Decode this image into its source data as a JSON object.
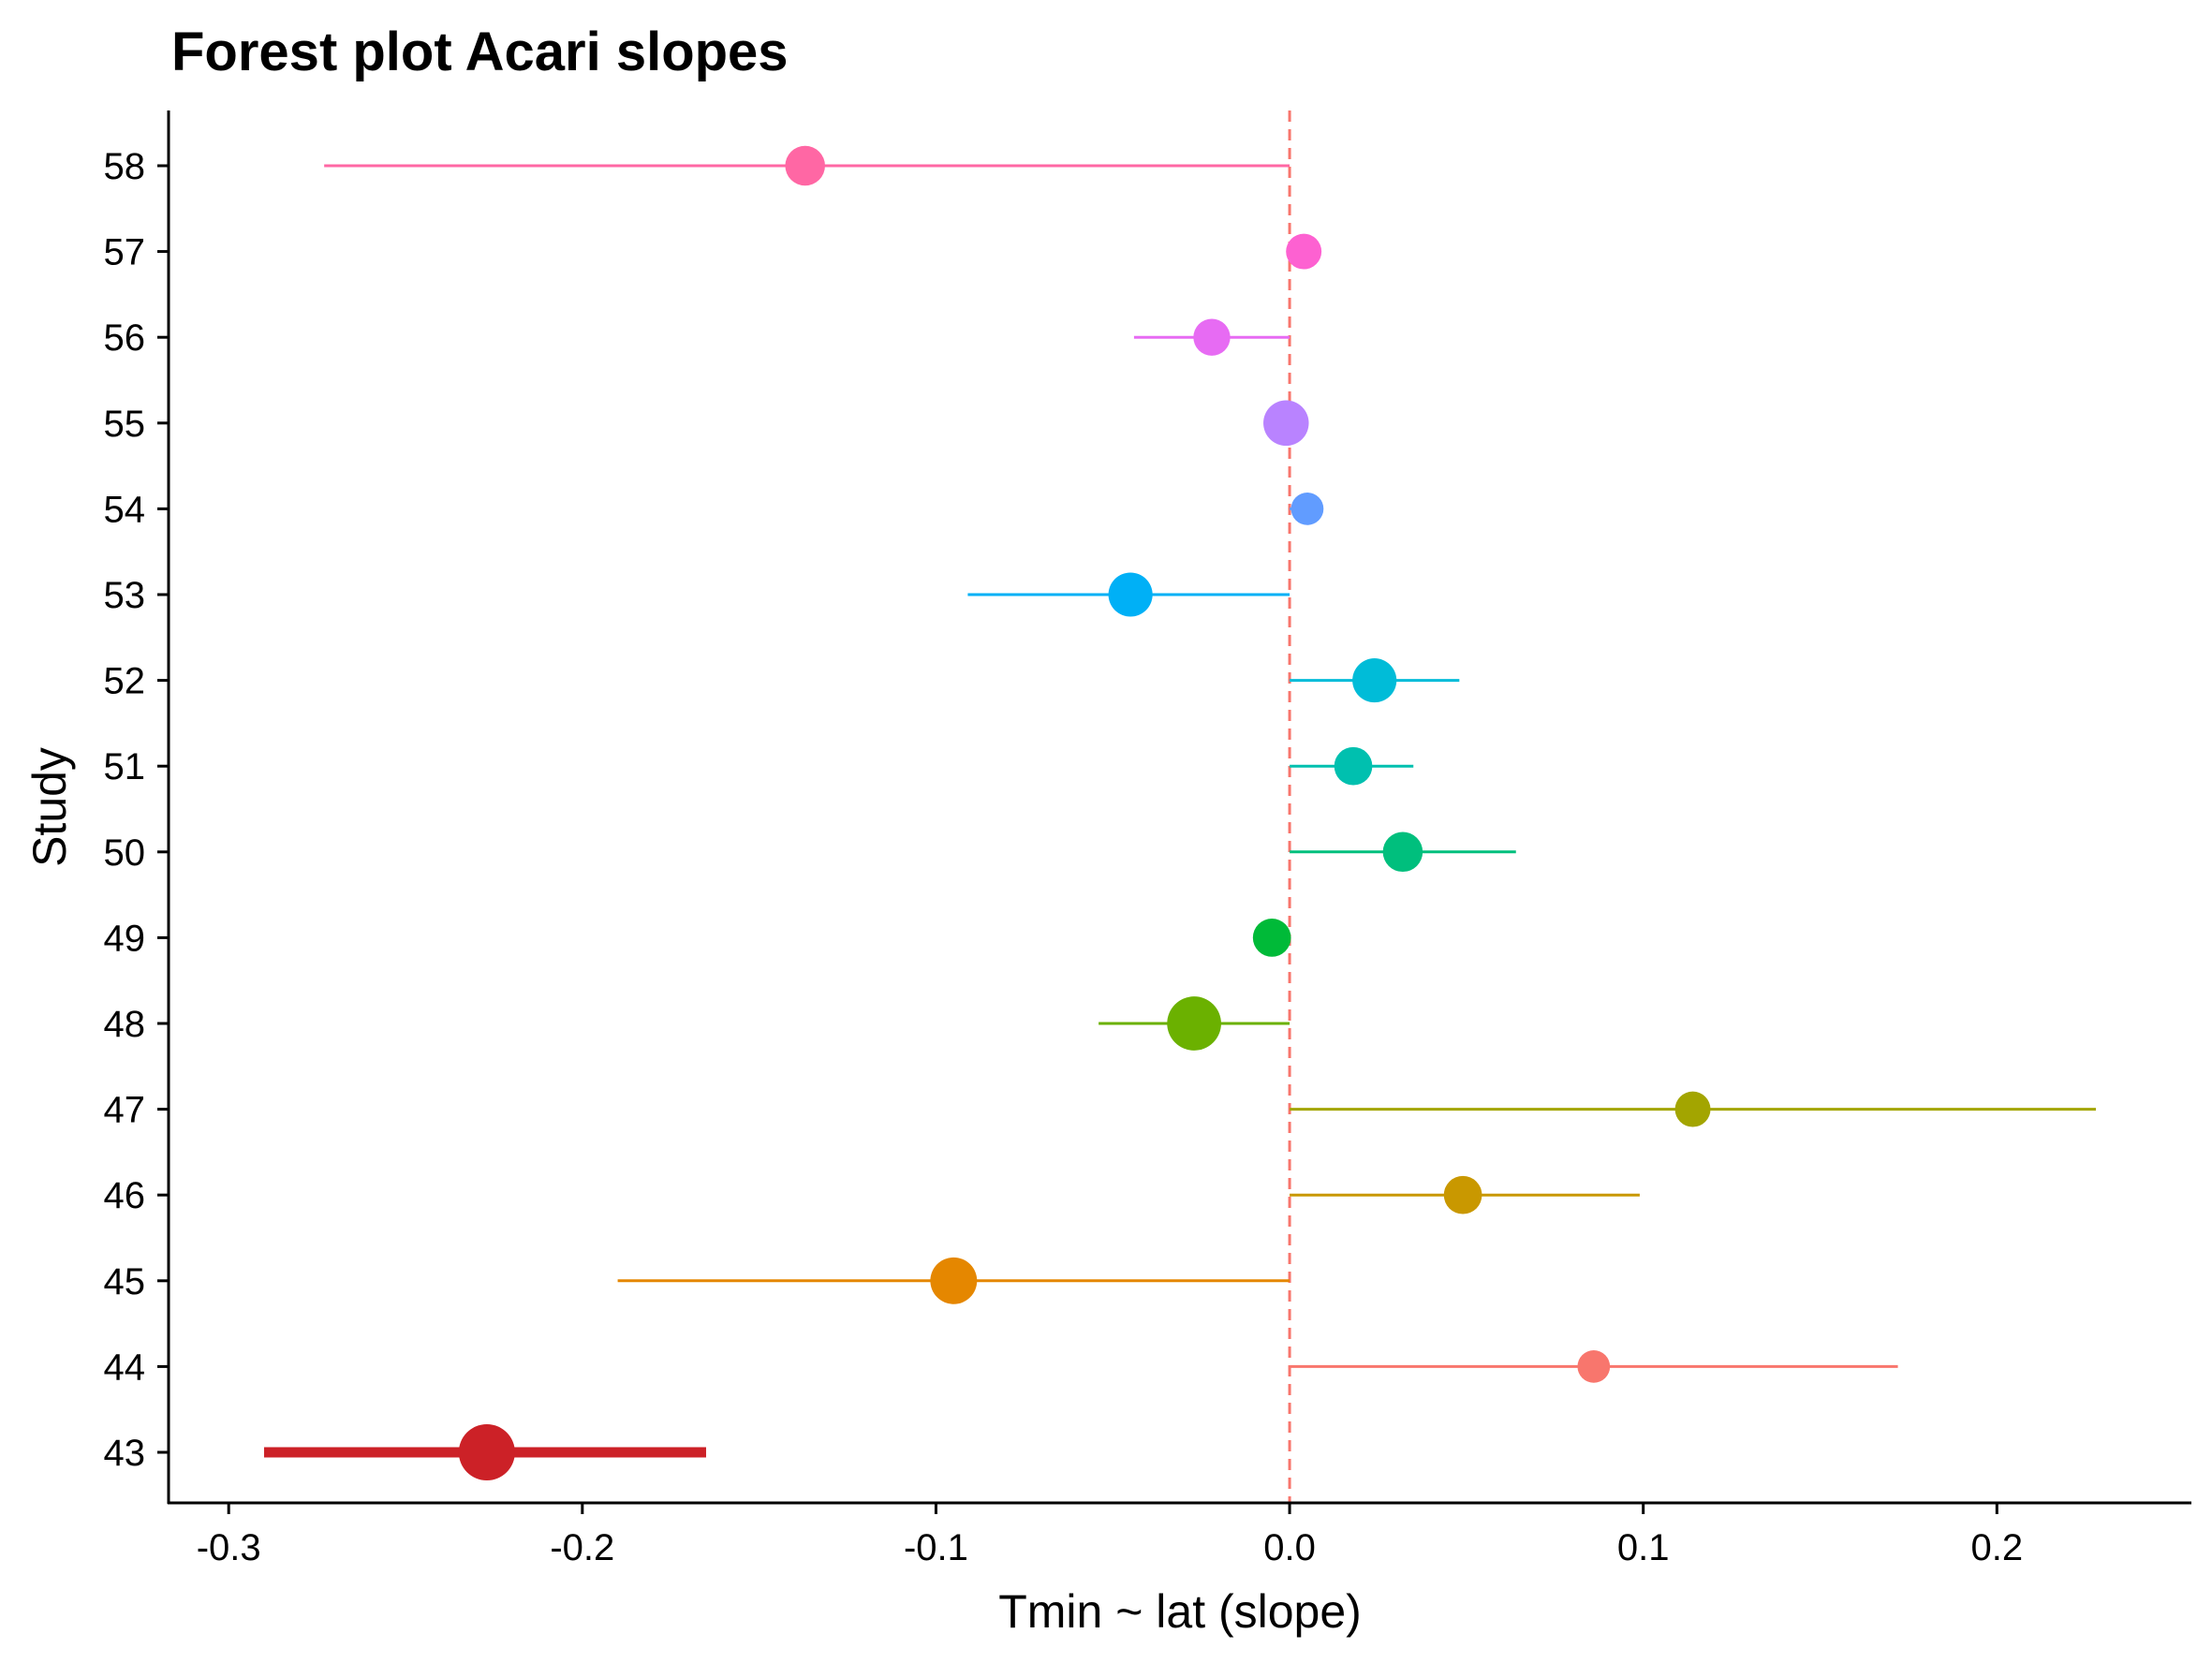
{
  "chart_data": {
    "type": "forest",
    "title": "Forest plot Acari slopes",
    "xlabel": "Tmin ~ lat (slope)",
    "ylabel": "Study",
    "xlim": [
      -0.317,
      0.255
    ],
    "x_ticks": [
      -0.3,
      -0.2,
      -0.1,
      0.0,
      0.1,
      0.2
    ],
    "x_tick_labels": [
      "-0.3",
      "-0.2",
      "-0.1",
      "0.0",
      "0.1",
      "0.2"
    ],
    "reference_line": {
      "x": 0.0,
      "style": "dashed",
      "color": "#F8766D"
    },
    "grid": false,
    "legend": "none",
    "studies": [
      {
        "study": "43",
        "estimate": -0.227,
        "ci_low": -0.29,
        "ci_high": -0.165,
        "relative_size": 1.0,
        "color": "#CC2127",
        "emphasis": true
      },
      {
        "study": "44",
        "estimate": 0.086,
        "ci_low": 0.0,
        "ci_high": 0.172,
        "relative_size": 0.45,
        "color": "#F8766D"
      },
      {
        "study": "45",
        "estimate": -0.095,
        "ci_low": -0.19,
        "ci_high": 0.0,
        "relative_size": 0.78,
        "color": "#E58700"
      },
      {
        "study": "46",
        "estimate": 0.049,
        "ci_low": 0.0,
        "ci_high": 0.099,
        "relative_size": 0.58,
        "color": "#C99800"
      },
      {
        "study": "47",
        "estimate": 0.114,
        "ci_low": 0.0,
        "ci_high": 0.228,
        "relative_size": 0.52,
        "color": "#A3A500"
      },
      {
        "study": "48",
        "estimate": -0.027,
        "ci_low": -0.054,
        "ci_high": 0.0,
        "relative_size": 0.95,
        "color": "#6BB100"
      },
      {
        "study": "49",
        "estimate": -0.005,
        "ci_low": -0.01,
        "ci_high": 0.0,
        "relative_size": 0.58,
        "color": "#00BA38"
      },
      {
        "study": "50",
        "estimate": 0.032,
        "ci_low": 0.0,
        "ci_high": 0.064,
        "relative_size": 0.62,
        "color": "#00BF7D"
      },
      {
        "study": "51",
        "estimate": 0.018,
        "ci_low": 0.0,
        "ci_high": 0.035,
        "relative_size": 0.58,
        "color": "#00C0AF"
      },
      {
        "study": "52",
        "estimate": 0.024,
        "ci_low": 0.0,
        "ci_high": 0.048,
        "relative_size": 0.72,
        "color": "#00BCD8"
      },
      {
        "study": "53",
        "estimate": -0.045,
        "ci_low": -0.091,
        "ci_high": 0.0,
        "relative_size": 0.72,
        "color": "#00B0F6"
      },
      {
        "study": "54",
        "estimate": 0.005,
        "ci_low": 0.0,
        "ci_high": 0.009,
        "relative_size": 0.45,
        "color": "#619CFF"
      },
      {
        "study": "55",
        "estimate": -0.001,
        "ci_low": -0.002,
        "ci_high": 0.0,
        "relative_size": 0.75,
        "color": "#B983FF"
      },
      {
        "study": "56",
        "estimate": -0.022,
        "ci_low": -0.044,
        "ci_high": 0.0,
        "relative_size": 0.55,
        "color": "#E76BF3"
      },
      {
        "study": "57",
        "estimate": 0.004,
        "ci_low": 0.0,
        "ci_high": 0.004,
        "relative_size": 0.52,
        "color": "#FD61D1"
      },
      {
        "study": "58",
        "estimate": -0.137,
        "ci_low": -0.273,
        "ci_high": 0.0,
        "relative_size": 0.62,
        "color": "#FF67A4"
      }
    ]
  }
}
